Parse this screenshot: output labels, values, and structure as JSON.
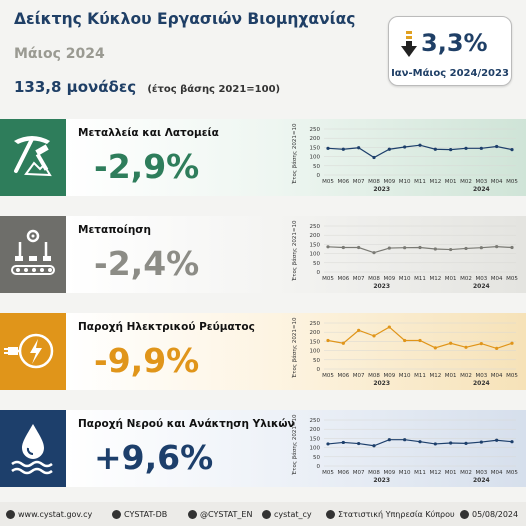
{
  "header": {
    "title": "Δείκτης Κύκλου Εργασιών Βιομηχανίας",
    "subtitle": "Μάιος 2024",
    "index_value": "133,8 μονάδες",
    "base_note": "(έτος βάσης 2021=100)"
  },
  "summary": {
    "value": "3,3%",
    "period": "Ιαν-Μάιος 2024/2023",
    "arrow_icon": "arrow-down-icon"
  },
  "colors": {
    "green": "#2e7d5b",
    "grey": "#6e6e6a",
    "orange": "#e0951a",
    "navy": "#1d3f6b"
  },
  "sections": [
    {
      "id": "mining",
      "name": "Μεταλλεία και Λατομεία",
      "change": "-2,9%",
      "icon": "pickaxe-icon"
    },
    {
      "id": "manufacturing",
      "name": "Μεταποίηση",
      "change": "-2,4%",
      "icon": "factory-icon"
    },
    {
      "id": "electricity",
      "name": "Παροχή  Ηλεκτρικού  Ρεύματος",
      "change": "-9,9%",
      "icon": "electric-plug-icon"
    },
    {
      "id": "water",
      "name": "Παροχή Νερού και Ανάκτηση Υλικών",
      "change": "+9,6%",
      "icon": "water-drop-icon"
    }
  ],
  "chart_data": [
    {
      "type": "line",
      "ylabel": "Έτος βάσης 2021=100",
      "ylim": [
        0,
        250
      ],
      "yticks": [
        "0",
        "50",
        "100",
        "150",
        "200",
        "250"
      ],
      "categories": [
        "M05",
        "M06",
        "M07",
        "M08",
        "M09",
        "M10",
        "M11",
        "M12",
        "M01",
        "M02",
        "M03",
        "M04",
        "M05"
      ],
      "year_labels": [
        "2023",
        "2024"
      ],
      "values": [
        145,
        140,
        148,
        95,
        140,
        152,
        162,
        140,
        138,
        145,
        145,
        155,
        138
      ]
    },
    {
      "type": "line",
      "ylabel": "Έτος βάσης 2021=100",
      "ylim": [
        0,
        250
      ],
      "yticks": [
        "0",
        "50",
        "100",
        "150",
        "200",
        "250"
      ],
      "categories": [
        "M05",
        "M06",
        "M07",
        "M08",
        "M09",
        "M10",
        "M11",
        "M12",
        "M01",
        "M02",
        "M03",
        "M04",
        "M05"
      ],
      "year_labels": [
        "2023",
        "2024"
      ],
      "values": [
        137,
        133,
        133,
        105,
        130,
        132,
        133,
        125,
        122,
        128,
        132,
        138,
        133
      ]
    },
    {
      "type": "line",
      "ylabel": "Έτος βάσης 2021=100",
      "ylim": [
        0,
        250
      ],
      "yticks": [
        "0",
        "50",
        "100",
        "150",
        "200",
        "250"
      ],
      "categories": [
        "M05",
        "M06",
        "M07",
        "M08",
        "M09",
        "M10",
        "M11",
        "M12",
        "M01",
        "M02",
        "M03",
        "M04",
        "M05"
      ],
      "year_labels": [
        "2023",
        "2024"
      ],
      "values": [
        155,
        140,
        210,
        180,
        228,
        155,
        155,
        115,
        140,
        118,
        138,
        112,
        140
      ]
    },
    {
      "type": "line",
      "ylabel": "Έτος βάσης 2021=100",
      "ylim": [
        0,
        250
      ],
      "yticks": [
        "0",
        "50",
        "100",
        "150",
        "200",
        "250"
      ],
      "categories": [
        "M05",
        "M06",
        "M07",
        "M08",
        "M09",
        "M10",
        "M11",
        "M12",
        "M01",
        "M02",
        "M03",
        "M04",
        "M05"
      ],
      "year_labels": [
        "2023",
        "2024"
      ],
      "values": [
        120,
        128,
        122,
        110,
        143,
        143,
        132,
        120,
        125,
        123,
        130,
        140,
        132
      ]
    }
  ],
  "footer": {
    "website": "www.cystat.gov.cy",
    "db": "CYSTAT-DB",
    "twitter": "@CYSTAT_EN",
    "instagram": "cystat_cy",
    "facebook": "Στατιστική Υπηρεσία Κύπρου",
    "date": "05/08/2024",
    "icons": [
      "globe-icon",
      "database-icon",
      "twitter-icon",
      "instagram-icon",
      "facebook-icon",
      "calendar-icon"
    ]
  }
}
